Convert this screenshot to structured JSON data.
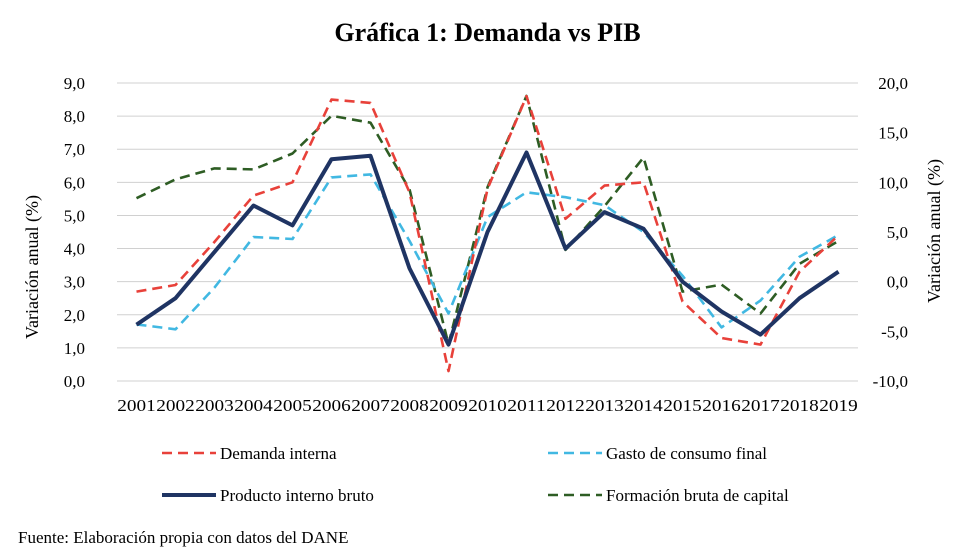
{
  "chart_data": {
    "type": "line",
    "title": "Gráfica 1: Demanda vs PIB",
    "ylabel_left": "Variación anual (%)",
    "ylabel_right": "Variación anual (%)",
    "ylim_left": [
      0,
      9
    ],
    "ylim_right": [
      -10,
      20
    ],
    "yticks_left": [
      "0,0",
      "1,0",
      "2,0",
      "3,0",
      "4,0",
      "5,0",
      "6,0",
      "7,0",
      "8,0",
      "9,0"
    ],
    "yticks_right": [
      "-10,0",
      "-5,0",
      "0,0",
      "5,0",
      "10,0",
      "15,0",
      "20,0"
    ],
    "grid": true,
    "legend_position": "bottom",
    "x": [
      "2001",
      "2002",
      "2003",
      "2004",
      "2005",
      "2006",
      "2007",
      "2008",
      "2009",
      "2010",
      "2011",
      "2012",
      "2013",
      "2014",
      "2015",
      "2016",
      "2017",
      "2018",
      "2019"
    ],
    "series": [
      {
        "name": "Demanda interna",
        "axis": "left",
        "style": "dashed",
        "color": "#e8413a",
        "values": [
          2.7,
          2.9,
          4.2,
          5.6,
          6.0,
          8.5,
          8.4,
          5.7,
          0.3,
          5.8,
          8.6,
          4.9,
          5.9,
          6.0,
          2.4,
          1.3,
          1.1,
          3.3,
          4.4
        ]
      },
      {
        "name": "Gasto de consumo final",
        "axis": "right",
        "style": "dashed",
        "color": "#41b8e2",
        "values": [
          -4.3,
          -4.8,
          -0.6,
          4.5,
          4.3,
          10.5,
          10.8,
          4.1,
          -3.2,
          6.5,
          9.0,
          8.5,
          7.7,
          5.0,
          0.6,
          -4.6,
          -1.9,
          2.5,
          4.7
        ]
      },
      {
        "name": "Producto interno bruto",
        "axis": "left",
        "style": "solid",
        "color": "#1f3463",
        "values": [
          1.7,
          2.5,
          3.9,
          5.3,
          4.7,
          6.7,
          6.8,
          3.4,
          1.1,
          4.5,
          6.9,
          4.0,
          5.1,
          4.6,
          3.0,
          2.1,
          1.4,
          2.5,
          3.3
        ]
      },
      {
        "name": "Formación bruta de capital",
        "axis": "right",
        "style": "dashed",
        "color": "#2e5d24",
        "values": [
          8.4,
          10.3,
          11.4,
          11.3,
          12.9,
          16.7,
          16.0,
          9.3,
          -6.3,
          9.5,
          18.7,
          3.2,
          7.6,
          12.5,
          -1.0,
          -0.3,
          -3.2,
          1.8,
          4.1
        ]
      }
    ]
  },
  "source_note": "Fuente: Elaboración propia con datos del DANE"
}
